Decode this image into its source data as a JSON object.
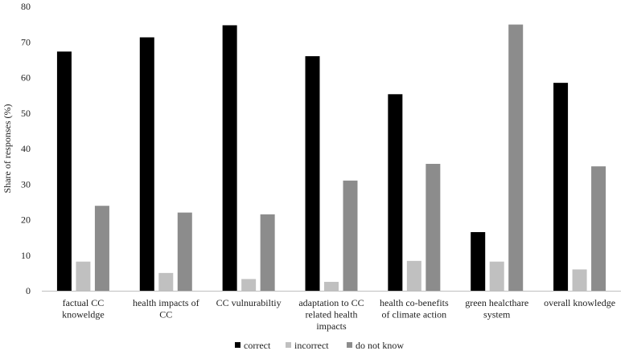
{
  "chart_data": {
    "type": "bar",
    "title": "",
    "xlabel": "",
    "ylabel": "Share of responses (%)",
    "ylim": [
      0,
      80
    ],
    "yticks": [
      0,
      10,
      20,
      30,
      40,
      50,
      60,
      70,
      80
    ],
    "grid": false,
    "legend_position": "bottom",
    "categories": [
      [
        "factual CC",
        "knoweldge"
      ],
      [
        "health impacts of",
        "CC"
      ],
      [
        "CC vulnurabiltiy"
      ],
      [
        "adaptation to CC",
        "related health",
        "impacts"
      ],
      [
        "health co-benefits",
        "of climate action"
      ],
      [
        "green healcthare",
        "system"
      ],
      [
        "overall knowledge"
      ]
    ],
    "series": [
      {
        "name": "correct",
        "color": "#000000",
        "values": [
          67.3,
          71.3,
          74.7,
          66.0,
          55.3,
          16.5,
          58.5
        ]
      },
      {
        "name": "incorrect",
        "color": "#c0c0c0",
        "values": [
          8.2,
          5.0,
          3.3,
          2.5,
          8.4,
          8.2,
          6.0
        ]
      },
      {
        "name": "do not know",
        "color": "#8c8c8c",
        "values": [
          23.9,
          22.0,
          21.5,
          31.0,
          35.7,
          74.9,
          35.0
        ]
      }
    ]
  }
}
